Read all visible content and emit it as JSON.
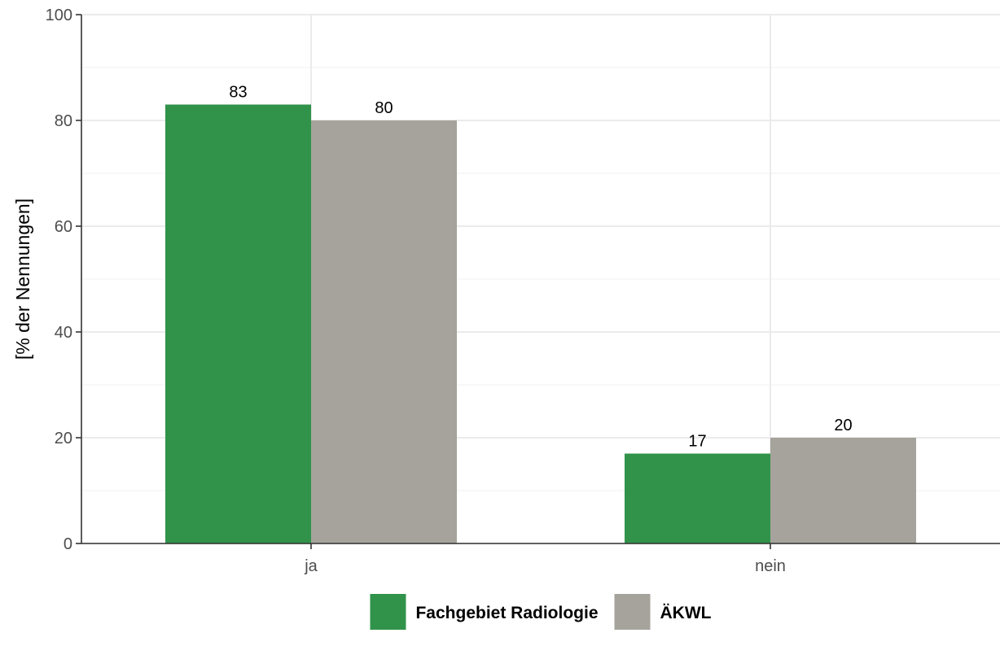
{
  "chart_data": {
    "type": "bar",
    "title": "",
    "xlabel": "",
    "ylabel": "[% der Nennungen]",
    "categories": [
      "ja",
      "nein"
    ],
    "series": [
      {
        "name": "Fachgebiet Radiologie",
        "values": [
          83,
          17
        ],
        "color": "#31934a"
      },
      {
        "name": "ÄKWL",
        "values": [
          80,
          20
        ],
        "color": "#a5a39b"
      }
    ],
    "data_labels": [
      [
        "83",
        "17"
      ],
      [
        "80",
        "20"
      ]
    ],
    "ylim": [
      0,
      100
    ],
    "yticks": [
      0,
      20,
      40,
      60,
      80,
      100
    ],
    "grid": true,
    "legend_position": "bottom"
  }
}
